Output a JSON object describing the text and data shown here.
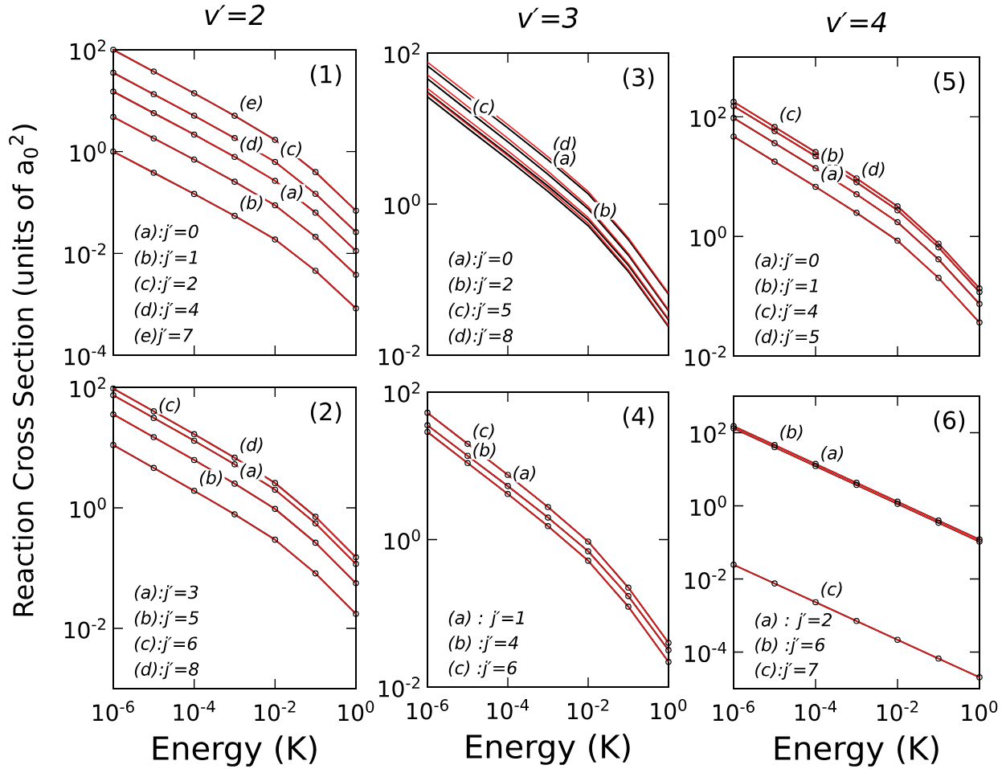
{
  "chart_data": [
    {
      "type": "line",
      "title": "v′=2",
      "ylabel": "Reaction Cross Section (units of a$_{0}$$^{2}$)",
      "log": "xy",
      "tick_labels": "y",
      "xlim": [
        1e-06,
        1
      ],
      "ylim": [
        0.0001,
        100
      ],
      "xticks": [
        {
          "value": 1e-06,
          "label": null
        },
        {
          "value": 0.0001,
          "label": null
        },
        {
          "value": 0.01,
          "label": null
        },
        {
          "value": 1,
          "label": null
        }
      ],
      "yticks": [
        {
          "value": 0.0001,
          "label": "10$^{-4}$"
        },
        {
          "value": 0.01,
          "label": "10$^{-2}$"
        },
        {
          "value": 1,
          "label": "10$^{0}$"
        },
        {
          "value": 100,
          "label": "10$^{2}$"
        }
      ],
      "x": [
        1e-06,
        1e-05,
        0.0001,
        0.001,
        0.01,
        0.1,
        1
      ],
      "series": [
        {
          "color": "#000000",
          "marker": "circle",
          "values": [
            100,
            37.4,
            14.0,
            5.06,
            1.7,
            0.396,
            0.069
          ]
        },
        {
          "color": "#ee1c1c",
          "marker": "none",
          "values": [
            100,
            37.4,
            14.0,
            5.06,
            1.7,
            0.396,
            0.069
          ]
        },
        {
          "color": "#000000",
          "marker": "circle",
          "values": [
            35.5,
            13.4,
            5.07,
            1.85,
            0.627,
            0.148,
            0.0263
          ]
        },
        {
          "color": "#ee1c1c",
          "marker": "none",
          "values": [
            35.5,
            13.4,
            5.07,
            1.85,
            0.627,
            0.148,
            0.0263
          ]
        },
        {
          "color": "#000000",
          "marker": "circle",
          "values": [
            15.1,
            5.71,
            2.16,
            0.789,
            0.267,
            0.0632,
            0.0112
          ]
        },
        {
          "color": "#ee1c1c",
          "marker": "none",
          "values": [
            15.1,
            5.71,
            2.16,
            0.789,
            0.267,
            0.0632,
            0.0112
          ]
        },
        {
          "color": "#000000",
          "marker": "circle",
          "values": [
            4.79,
            1.82,
            0.697,
            0.256,
            0.0879,
            0.0211,
            0.0038
          ]
        },
        {
          "color": "#ee1c1c",
          "marker": "none",
          "values": [
            4.79,
            1.82,
            0.697,
            0.256,
            0.0879,
            0.0211,
            0.0038
          ]
        },
        {
          "color": "#000000",
          "marker": "circle",
          "values": [
            1,
            0.384,
            0.147,
            0.0546,
            0.0188,
            0.00456,
            0.00083
          ]
        },
        {
          "color": "#ee1c1c",
          "marker": "none",
          "values": [
            1,
            0.384,
            0.147,
            0.0546,
            0.0188,
            0.00456,
            0.00083
          ]
        }
      ],
      "annotations": [
        "(1)",
        "(a):j′=0",
        "(b):j′=1",
        "(c):j′=2",
        "(d):j′=4",
        "(e)j′=7",
        {
          "text": "(e)",
          "x": 0.001,
          "y": 5.06
        },
        {
          "text": "(c)",
          "x": 0.01,
          "y": 0.627
        },
        {
          "text": "(d)",
          "x": 0.001,
          "y": 0.789
        },
        {
          "text": "(a)",
          "x": 0.01,
          "y": 0.0879
        },
        {
          "text": "(b)",
          "x": 0.001,
          "y": 0.0546
        }
      ]
    },
    {
      "type": "line",
      "title": "v′=3",
      "log": "xy",
      "tick_labels": "y",
      "xlim": [
        1e-06,
        1
      ],
      "ylim": [
        0.01,
        100
      ],
      "xticks": [
        {
          "value": 1e-06,
          "label": null
        },
        {
          "value": 0.0001,
          "label": null
        },
        {
          "value": 0.01,
          "label": null
        },
        {
          "value": 1,
          "label": null
        }
      ],
      "yticks": [
        {
          "value": 0.01,
          "label": "10$^{-2}$"
        },
        {
          "value": 1,
          "label": "10$^{0}$"
        },
        {
          "value": 100,
          "label": "10$^{2}$"
        }
      ],
      "x": [
        1e-06,
        1e-05,
        0.0001,
        0.001,
        0.01,
        0.1,
        1
      ],
      "series": [
        {
          "color": "#000000",
          "marker": "none",
          "values": [
            67.5,
            26.1,
            10.2,
            3.84,
            1.37,
            0.34,
            0.0641
          ]
        },
        {
          "color": "#ee1c1c",
          "marker": "none",
          "values": [
            75.9,
            29.3,
            11.3,
            4.22,
            1.47,
            0.358,
            0.0661
          ]
        },
        {
          "color": "#000000",
          "marker": "none",
          "values": [
            45.7,
            17.4,
            6.67,
            2.48,
            0.864,
            0.211,
            0.0386
          ]
        },
        {
          "color": "#ee1c1c",
          "marker": "none",
          "values": [
            51.3,
            19.5,
            7.41,
            2.72,
            0.929,
            0.222,
            0.0398
          ]
        },
        {
          "color": "#000000",
          "marker": "none",
          "values": [
            30.2,
            11.7,
            4.57,
            1.73,
            0.618,
            0.155,
            0.0293
          ]
        },
        {
          "color": "#ee1c1c",
          "marker": "none",
          "values": [
            33.9,
            13.1,
            5.08,
            1.9,
            0.664,
            0.163,
            0.0302
          ]
        },
        {
          "color": "#000000",
          "marker": "none",
          "values": [
            26.3,
            10.1,
            3.92,
            1.47,
            0.517,
            0.128,
            0.0238
          ]
        },
        {
          "color": "#ee1c1c",
          "marker": "none",
          "values": [
            29.5,
            11.3,
            4.35,
            1.61,
            0.556,
            0.135,
            0.0245
          ]
        }
      ],
      "annotations": [
        "(3)",
        "(a):j′=0",
        "(b):j′=2",
        "(c):j′=5",
        "(d):j′=8",
        {
          "text": "(d)",
          "x": 0.001,
          "y": 4.22
        },
        {
          "text": "(c)",
          "x": 1e-05,
          "y": 13.1
        },
        {
          "text": "(a)",
          "x": 0.001,
          "y": 2.72
        },
        {
          "text": "(b)",
          "x": 0.01,
          "y": 0.556
        }
      ]
    },
    {
      "type": "line",
      "title": "v′=4",
      "log": "xy",
      "tick_labels": "y",
      "xlim": [
        1e-06,
        1
      ],
      "ylim": [
        0.01,
        1000
      ],
      "xticks": [
        {
          "value": 1e-06,
          "label": null
        },
        {
          "value": 0.0001,
          "label": null
        },
        {
          "value": 0.01,
          "label": null
        },
        {
          "value": 1,
          "label": null
        }
      ],
      "yticks": [
        {
          "value": 0.01,
          "label": "10$^{-2}$"
        },
        {
          "value": 1,
          "label": "10$^{0}$"
        },
        {
          "value": 100,
          "label": "10$^{2}$"
        }
      ],
      "x": [
        1e-06,
        1e-05,
        0.0001,
        0.001,
        0.01,
        0.1,
        1
      ],
      "series": [
        {
          "color": "#000000",
          "marker": "circle",
          "values": [
            178,
            67.5,
            25.6,
            9.35,
            3.18,
            0.757,
            0.135
          ]
        },
        {
          "color": "#ee1c1c",
          "marker": "none",
          "values": [
            178,
            67.5,
            25.6,
            9.35,
            3.18,
            0.757,
            0.135
          ]
        },
        {
          "color": "#000000",
          "marker": "circle",
          "values": [
            151,
            57.5,
            21.9,
            8.04,
            2.74,
            0.655,
            0.117
          ]
        },
        {
          "color": "#ee1c1c",
          "marker": "none",
          "values": [
            151,
            57.5,
            21.9,
            8.04,
            2.74,
            0.655,
            0.117
          ]
        },
        {
          "color": "#000000",
          "marker": "circle",
          "values": [
            95.5,
            36.3,
            13.8,
            5.07,
            1.73,
            0.413,
            0.0741
          ]
        },
        {
          "color": "#ee1c1c",
          "marker": "none",
          "values": [
            95.5,
            36.3,
            13.8,
            5.07,
            1.73,
            0.413,
            0.0741
          ]
        },
        {
          "color": "#000000",
          "marker": "circle",
          "values": [
            46.8,
            17.8,
            6.76,
            2.48,
            0.847,
            0.202,
            0.0363
          ]
        },
        {
          "color": "#ee1c1c",
          "marker": "none",
          "values": [
            46.8,
            17.8,
            6.76,
            2.48,
            0.847,
            0.202,
            0.0363
          ]
        }
      ],
      "annotations": [
        "(5)",
        "(a):j′=0",
        "(b):j′=1",
        "(c):j′=4",
        "(d):j′=5",
        {
          "text": "(c)",
          "x": 1e-05,
          "y": 67.5
        },
        {
          "text": "(b)",
          "x": 0.0001,
          "y": 13.8
        },
        {
          "text": "(d)",
          "x": 0.001,
          "y": 8.04
        },
        {
          "text": "(a)",
          "x": 0.0001,
          "y": 6.76
        }
      ]
    },
    {
      "type": "line",
      "xlabel": "Energy (K)",
      "log": "xy",
      "xlim": [
        1e-06,
        1
      ],
      "ylim": [
        0.001,
        100
      ],
      "xticks": [
        {
          "value": 1e-06,
          "label": "10$^{-6}$"
        },
        {
          "value": 0.0001,
          "label": "10$^{-4}$"
        },
        {
          "value": 0.01,
          "label": "10$^{-2}$"
        },
        {
          "value": 1,
          "label": "10$^{0}$"
        }
      ],
      "yticks": [
        {
          "value": 0.01,
          "label": "10$^{-2}$"
        },
        {
          "value": 1,
          "label": "10$^{0}$"
        },
        {
          "value": 100,
          "label": "10$^{2}$"
        }
      ],
      "x": [
        1e-06,
        1e-05,
        0.0001,
        0.001,
        0.01,
        0.1,
        1
      ],
      "series": [
        {
          "color": "#000000",
          "marker": "circle",
          "values": [
            95.5,
            40.0,
            16.7,
            6.79,
            2.58,
            0.711,
            0.151
          ]
        },
        {
          "color": "#ee1c1c",
          "marker": "none",
          "values": [
            95.5,
            40.0,
            16.7,
            6.79,
            2.58,
            0.711,
            0.151
          ]
        },
        {
          "color": "#000000",
          "marker": "circle",
          "values": [
            74.1,
            31.0,
            13.0,
            5.27,
            2.0,
            0.552,
            0.117
          ]
        },
        {
          "color": "#ee1c1c",
          "marker": "none",
          "values": [
            74.1,
            31.0,
            13.0,
            5.27,
            2.0,
            0.552,
            0.117
          ]
        },
        {
          "color": "#000000",
          "marker": "circle",
          "values": [
            35.5,
            14.9,
            6.22,
            2.52,
            0.959,
            0.264,
            0.0562
          ]
        },
        {
          "color": "#ee1c1c",
          "marker": "none",
          "values": [
            35.5,
            14.9,
            6.22,
            2.52,
            0.959,
            0.264,
            0.0562
          ]
        },
        {
          "color": "#000000",
          "marker": "circle",
          "values": [
            11.0,
            4.59,
            1.92,
            0.78,
            0.296,
            0.0817,
            0.0174
          ]
        },
        {
          "color": "#ee1c1c",
          "marker": "none",
          "values": [
            11.0,
            4.59,
            1.92,
            0.78,
            0.296,
            0.0817,
            0.0174
          ]
        }
      ],
      "annotations": [
        "(2)",
        "(a):j′=3",
        "(b):j′=5",
        "(c):j′=6",
        "(d):j′=8",
        {
          "text": "(c)",
          "x": 1e-05,
          "y": 31.0
        },
        {
          "text": "(d)",
          "x": 0.001,
          "y": 6.79
        },
        {
          "text": "(a)",
          "x": 0.001,
          "y": 2.52
        },
        {
          "text": "(b)",
          "x": 0.0001,
          "y": 1.92
        }
      ]
    },
    {
      "type": "line",
      "xlabel": "Energy (K)",
      "log": "xy",
      "xlim": [
        1e-06,
        1
      ],
      "ylim": [
        0.01,
        100
      ],
      "xticks": [
        {
          "value": 1e-06,
          "label": "10$^{-6}$"
        },
        {
          "value": 0.0001,
          "label": "10$^{-4}$"
        },
        {
          "value": 0.01,
          "label": "10$^{-2}$"
        },
        {
          "value": 1,
          "label": "10$^{0}$"
        }
      ],
      "yticks": [
        {
          "value": 0.01,
          "label": "10$^{-2}$"
        },
        {
          "value": 1,
          "label": "10$^{0}$"
        },
        {
          "value": 100,
          "label": "10$^{2}$"
        }
      ],
      "x": [
        1e-06,
        1e-05,
        0.0001,
        0.001,
        0.01,
        0.1,
        1
      ],
      "series": [
        {
          "color": "#000000",
          "marker": "circle",
          "values": [
            52.5,
            19.9,
            7.55,
            2.76,
            0.94,
            0.223,
            0.0398
          ]
        },
        {
          "color": "#ee1c1c",
          "marker": "none",
          "values": [
            52.5,
            19.9,
            7.55,
            2.76,
            0.94,
            0.223,
            0.0398
          ]
        },
        {
          "color": "#000000",
          "marker": "circle",
          "values": [
            35.5,
            13.7,
            5.32,
            1.99,
            0.695,
            0.171,
            0.0316
          ]
        },
        {
          "color": "#ee1c1c",
          "marker": "none",
          "values": [
            35.5,
            13.7,
            5.32,
            1.99,
            0.695,
            0.171,
            0.0316
          ]
        },
        {
          "color": "#000000",
          "marker": "circle",
          "values": [
            28.8,
            10.9,
            4.15,
            1.52,
            0.516,
            0.123,
            0.0219
          ]
        },
        {
          "color": "#ee1c1c",
          "marker": "none",
          "values": [
            28.8,
            10.9,
            4.15,
            1.52,
            0.516,
            0.123,
            0.0219
          ]
        }
      ],
      "annotations": [
        "(4)",
        "(a) : j′=1",
        "(b) :j′=4",
        "(c) :j′=6",
        {
          "text": "(c)",
          "x": 1e-05,
          "y": 19.9
        },
        {
          "text": "(b)",
          "x": 1e-05,
          "y": 10.9
        },
        {
          "text": "(a)",
          "x": 0.0001,
          "y": 5.32
        }
      ]
    },
    {
      "type": "line",
      "xlabel": "Energy (K)",
      "log": "xy",
      "xlim": [
        1e-06,
        1
      ],
      "ylim": [
        1e-05,
        1000
      ],
      "xticks": [
        {
          "value": 1e-06,
          "label": "10$^{-6}$"
        },
        {
          "value": 0.0001,
          "label": "10$^{-4}$"
        },
        {
          "value": 0.01,
          "label": "10$^{-2}$"
        },
        {
          "value": 1,
          "label": "10$^{0}$"
        }
      ],
      "yticks": [
        {
          "value": 0.0001,
          "label": "10$^{-4}$"
        },
        {
          "value": 0.01,
          "label": "10$^{-2}$"
        },
        {
          "value": 1,
          "label": "10$^{0}$"
        },
        {
          "value": 100,
          "label": "10$^{2}$"
        }
      ],
      "x": [
        1e-06,
        1e-05,
        0.0001,
        0.001,
        0.01,
        0.1,
        1
      ],
      "series": [
        {
          "color": "#000000",
          "marker": "circle",
          "values": [
            151,
            46.0,
            14.0,
            4.27,
            1.3,
            0.395,
            0.12
          ]
        },
        {
          "color": "#ee1c1c",
          "marker": "none",
          "values": [
            151,
            46.0,
            14.0,
            4.27,
            1.3,
            0.395,
            0.12
          ]
        },
        {
          "color": "#000000",
          "marker": "circle",
          "values": [
            132,
            40.1,
            12.2,
            3.72,
            1.13,
            0.344,
            0.105
          ]
        },
        {
          "color": "#ee1c1c",
          "marker": "none",
          "values": [
            132,
            40.1,
            12.2,
            3.72,
            1.13,
            0.344,
            0.105
          ]
        },
        {
          "color": "#000000",
          "marker": "circle",
          "values": [
            0.0245,
            0.00753,
            0.00231,
            0.000708,
            0.000217,
            6.65e-05,
            2.04e-05
          ]
        },
        {
          "color": "#ee1c1c",
          "marker": "none",
          "values": [
            0.0245,
            0.00753,
            0.00231,
            0.000708,
            0.000217,
            6.65e-05,
            2.04e-05
          ]
        }
      ],
      "annotations": [
        "(6)",
        "(a) : j′=2",
        "(b) :j′=6",
        "(c):j′=7",
        {
          "text": "(b)",
          "x": 1e-05,
          "y": 46.0
        },
        {
          "text": "(a)",
          "x": 0.0001,
          "y": 12.2
        },
        {
          "text": "(c)",
          "x": 0.0001,
          "y": 0.00231
        }
      ]
    }
  ]
}
